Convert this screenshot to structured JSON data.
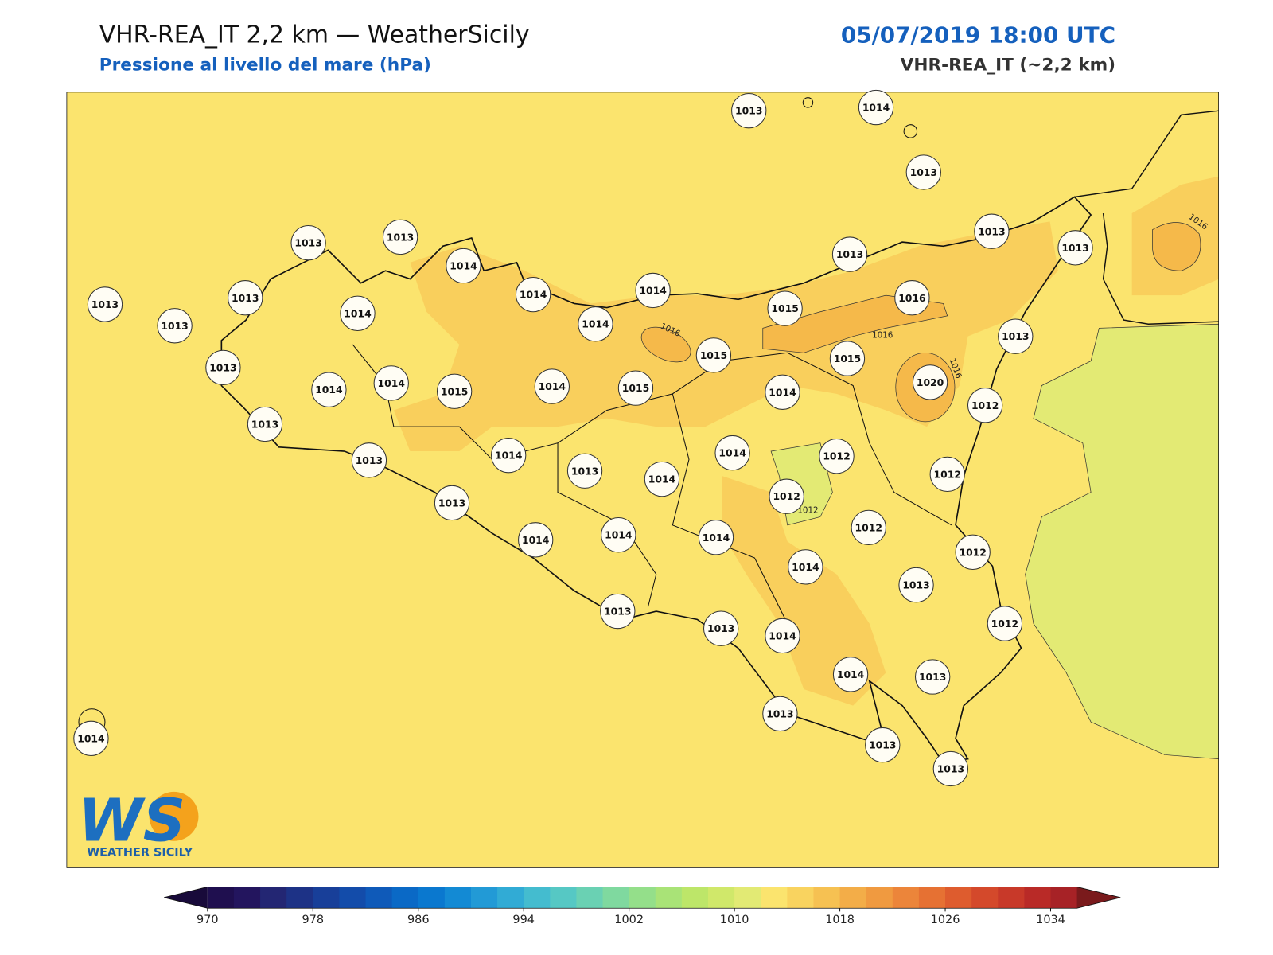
{
  "header": {
    "title": "VHR-REA_IT 2,2 km — WeatherSicily",
    "subtitle": "Pressione al livello del mare (hPa)",
    "datetime": "05/07/2019 18:00 UTC",
    "model": "VHR-REA_IT (~2,2 km)"
  },
  "map": {
    "stations": [
      1013,
      1014,
      1013,
      1013,
      1013,
      1013,
      1013,
      1013,
      1014,
      1014,
      1014,
      1013,
      1013,
      1013,
      1014,
      1014,
      1015,
      1016,
      1013,
      1015,
      1015,
      1020,
      1013,
      1014,
      1014,
      1015,
      1014,
      1015,
      1014,
      1012,
      1013,
      1013,
      1014,
      1013,
      1014,
      1014,
      1012,
      1012,
      1012,
      1013,
      1014,
      1014,
      1014,
      1012,
      1012,
      1014,
      1013,
      1013,
      1013,
      1014,
      1012,
      1014,
      1013,
      1013,
      1013,
      1013,
      1014
    ],
    "contour_labels": [
      1016,
      1016,
      1016,
      1016,
      1012
    ]
  },
  "colorbar": {
    "lim": [
      970,
      1036
    ],
    "ticks": [
      970,
      978,
      986,
      994,
      1002,
      1010,
      1018,
      1026,
      1034
    ],
    "colors": [
      "#1f0f4f",
      "#23155e",
      "#232673",
      "#1d3286",
      "#183f99",
      "#134caa",
      "#0f5ab9",
      "#0a69c6",
      "#0a78cf",
      "#138ad4",
      "#229ad6",
      "#31abd5",
      "#44bccf",
      "#56c8c4",
      "#6ad1b3",
      "#7fd99f",
      "#94df8a",
      "#a9e377",
      "#bde669",
      "#d0e86a",
      "#e2ea74",
      "#fbe46e",
      "#f9d35f",
      "#f6c152",
      "#f3ad48",
      "#f09a40",
      "#ec853a",
      "#e67133",
      "#de5c2e",
      "#d4492b",
      "#c83929",
      "#b92a27",
      "#a72226"
    ],
    "under": "#180a3a",
    "over": "#7a1a1c"
  },
  "logo": {
    "mark": "WS",
    "name": "WEATHER SICILY"
  }
}
